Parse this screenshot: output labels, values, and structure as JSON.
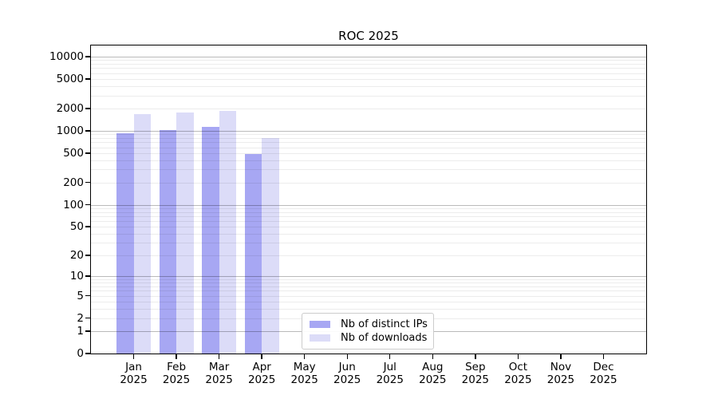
{
  "title": "ROC 2025",
  "chart_data": {
    "type": "bar",
    "title": "ROC 2025",
    "categories": [
      "Jan",
      "Feb",
      "Mar",
      "Apr",
      "May",
      "Jun",
      "Jul",
      "Aug",
      "Sep",
      "Oct",
      "Nov",
      "Dec"
    ],
    "x_year": "2025",
    "series": [
      {
        "name": "Nb of distinct IPs",
        "color": "#a7a7f3",
        "values": [
          930,
          1030,
          1120,
          490,
          null,
          null,
          null,
          null,
          null,
          null,
          null,
          null
        ]
      },
      {
        "name": "Nb of downloads",
        "color": "#dcdcf8",
        "values": [
          1690,
          1760,
          1850,
          800,
          null,
          null,
          null,
          null,
          null,
          null,
          null,
          null
        ]
      }
    ],
    "y_ticks": [
      0,
      1,
      2,
      5,
      10,
      20,
      50,
      100,
      200,
      500,
      1000,
      2000,
      5000,
      10000
    ],
    "y_scale": "log10(x+1)",
    "y_max": 14000,
    "grid": "both",
    "legend_position": "lower-center"
  },
  "legend": {
    "items": [
      {
        "label": "Nb of distinct IPs",
        "color": "#a7a7f3"
      },
      {
        "label": "Nb of downloads",
        "color": "#dcdcf8"
      }
    ]
  },
  "colors": {
    "background": "#ffffff",
    "bar_ips": "#a7a7f3",
    "bar_downloads": "#dcdcf8",
    "grid_minor": "#ececec",
    "grid_major": "#bababa",
    "spine": "#000000",
    "text": "#000000",
    "legend_border": "#cccccc"
  }
}
